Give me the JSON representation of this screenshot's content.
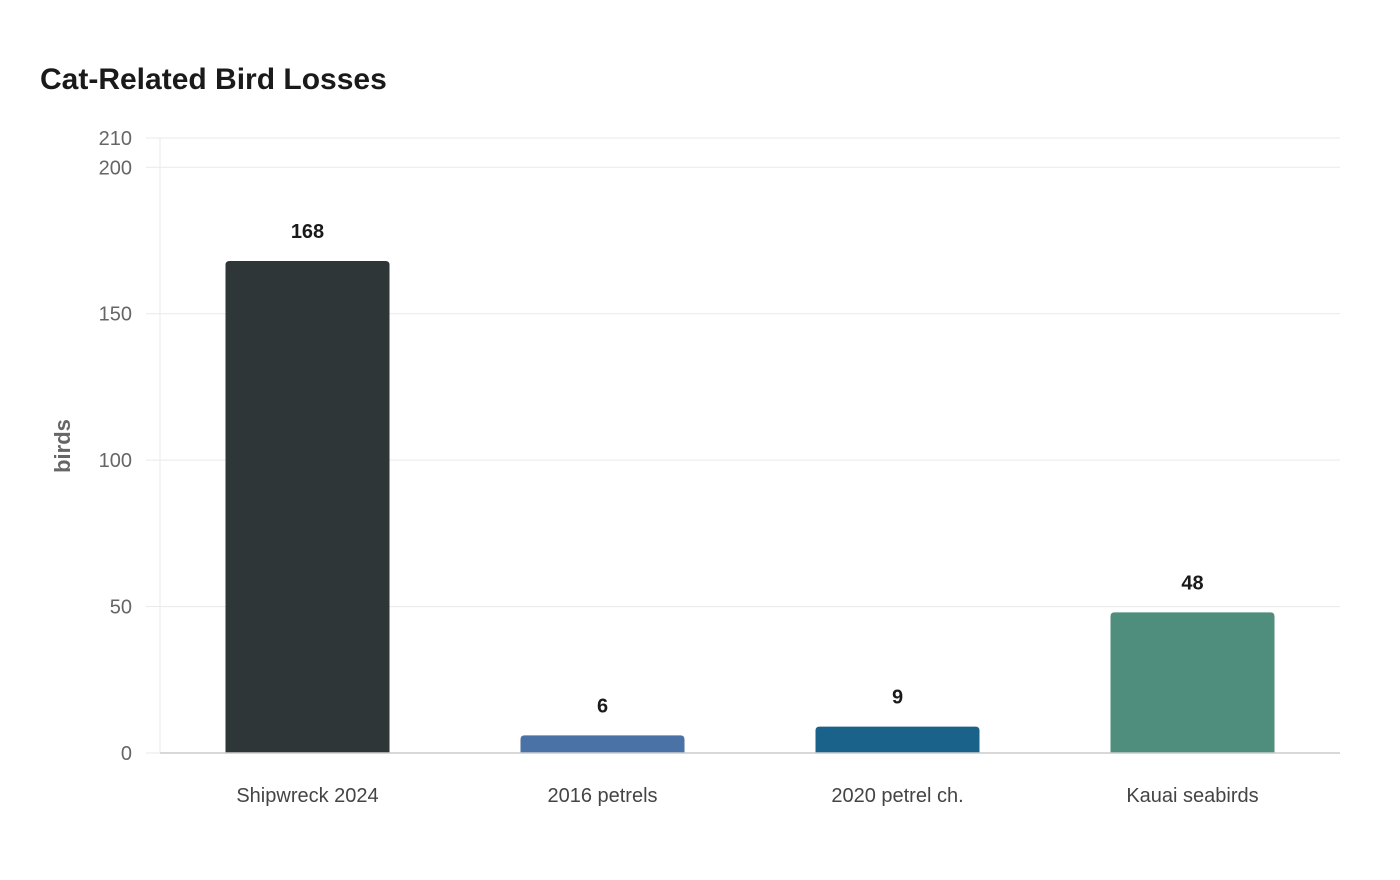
{
  "chart_data": {
    "type": "bar",
    "title": "Cat-Related Bird Losses",
    "xlabel": "",
    "ylabel": "birds",
    "categories": [
      "Shipwreck 2024",
      "2016 petrels",
      "2020 petrel ch.",
      "Kauai seabirds"
    ],
    "values": [
      168,
      6,
      9,
      48
    ],
    "data_labels": [
      "168",
      "6",
      "9",
      "48"
    ],
    "bar_colors": [
      "#2e3638",
      "#4a72a6",
      "#1a628a",
      "#4f8e7c"
    ],
    "ylim": [
      0,
      210
    ],
    "yticks": [
      0,
      50,
      100,
      150,
      200,
      210
    ],
    "grid": true,
    "legend": "none"
  }
}
